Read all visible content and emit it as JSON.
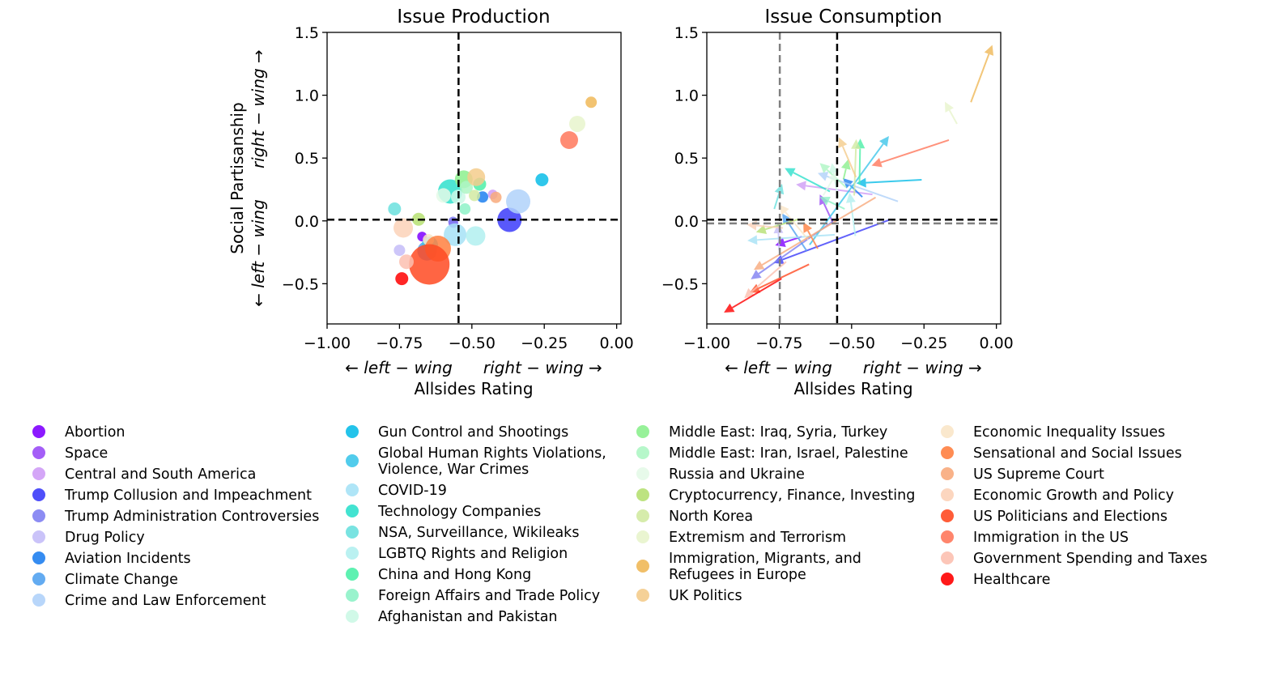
{
  "chart_data": [
    {
      "type": "scatter",
      "title": "Issue Production",
      "xlabel": "Allsides Rating",
      "xlabel_sub": "← left − wing      right − wing →",
      "ylabel": "Social Partisanship",
      "ylabel_sub": "← left − wing      right − wing →",
      "xlim": [
        -1.0,
        0.015
      ],
      "ylim": [
        -0.82,
        1.5
      ],
      "xticks": [
        "−1.00",
        "−0.75",
        "−0.50",
        "−0.25",
        "0.00"
      ],
      "xtick_values": [
        -1.0,
        -0.75,
        -0.5,
        -0.25,
        0.0
      ],
      "yticks": [
        "−0.5",
        "0.0",
        "0.5",
        "1.0",
        "1.5"
      ],
      "ytick_values": [
        -0.5,
        0.0,
        0.5,
        1.0,
        1.5
      ],
      "reference_lines": {
        "vertical": [
          -0.546
        ],
        "horizontal": [
          0.01
        ],
        "style": "dashed",
        "color": "#000000"
      },
      "grid": false
    },
    {
      "type": "arrows",
      "title": "Issue Consumption",
      "xlabel": "Allsides Rating",
      "xlabel_sub": "← left − wing      right − wing →",
      "xlim": [
        -1.0,
        0.015
      ],
      "ylim": [
        -0.82,
        1.5
      ],
      "xticks": [
        "−1.00",
        "−0.75",
        "−0.50",
        "−0.25",
        "0.00"
      ],
      "xtick_values": [
        -1.0,
        -0.75,
        -0.5,
        -0.25,
        0.0
      ],
      "yticks": [
        "−0.5",
        "0.0",
        "0.5",
        "1.0",
        "1.5"
      ],
      "ytick_values": [
        -0.5,
        0.0,
        0.5,
        1.0,
        1.5
      ],
      "reference_lines": {
        "vertical": [
          -0.55,
          -0.748
        ],
        "horizontal": [
          0.01,
          -0.02
        ],
        "colors": [
          "#000000",
          "#808080"
        ],
        "style": "dashed"
      },
      "grid": false
    }
  ],
  "legend": {
    "placement": "bottom",
    "topics": [
      {
        "name": "Abortion",
        "color": "#7f00ff",
        "production": [
          -0.672,
          -0.125
        ],
        "weight": 6,
        "consumption": [
          -0.764,
          -0.195
        ]
      },
      {
        "name": "Space",
        "color": "#9a4cf6",
        "production": [
          -0.564,
          -0.017
        ],
        "weight": 6,
        "consumption": [
          -0.61,
          0.21
        ]
      },
      {
        "name": "Central and South America",
        "color": "#cf9cf6",
        "production": [
          -0.428,
          0.21
        ],
        "weight": 6,
        "consumption": [
          -0.692,
          0.29
        ]
      },
      {
        "name": "Trump Collusion and Impeachment",
        "color": "#3c3cfa",
        "production": [
          -0.37,
          0.008
        ],
        "weight": 15,
        "consumption": [
          -0.77,
          -0.335
        ]
      },
      {
        "name": "Trump Administration Controversies",
        "color": "#7f7ff2",
        "production": [
          -0.565,
          -0.005
        ],
        "weight": 6,
        "consumption": [
          -0.848,
          -0.465
        ]
      },
      {
        "name": "Drug Policy",
        "color": "#c4bcf8",
        "production": [
          -0.75,
          -0.234
        ],
        "weight": 7,
        "consumption": [
          -0.754,
          -0.02
        ]
      },
      {
        "name": "Aviation Incidents",
        "color": "#1f80f0",
        "production": [
          -0.463,
          0.19
        ],
        "weight": 7,
        "consumption": [
          -0.53,
          0.34
        ]
      },
      {
        "name": "Climate Change",
        "color": "#52a2f0",
        "production": [
          -0.655,
          -0.239
        ],
        "weight": 12,
        "consumption": [
          -0.74,
          0.06
        ]
      },
      {
        "name": "Crime and Law Enforcement",
        "color": "#b0d2fa",
        "production": [
          -0.34,
          0.155
        ],
        "weight": 15,
        "consumption": [
          -0.617,
          0.38
        ]
      },
      {
        "name": "Gun Control and Shootings",
        "color": "#0bbde8",
        "production": [
          -0.258,
          0.327
        ],
        "weight": 8,
        "consumption": [
          -0.484,
          0.3
        ]
      },
      {
        "name": "Global Human Rights Violations,\nViolence, War Crimes",
        "color": "#3ec6ea",
        "production": [
          -0.645,
          -0.19
        ],
        "weight": 10,
        "consumption": [
          -0.371,
          0.675
        ]
      },
      {
        "name": "COVID-19",
        "color": "#a6e2f6",
        "production": [
          -0.558,
          -0.11
        ],
        "weight": 14,
        "consumption": [
          -0.86,
          -0.157
        ]
      },
      {
        "name": "Technology Companies",
        "color": "#2fe0cc",
        "production": [
          -0.575,
          0.234
        ],
        "weight": 15,
        "consumption": [
          -0.731,
          0.42
        ]
      },
      {
        "name": "NSA, Surveillance, Wikileaks",
        "color": "#6ae0de",
        "production": [
          -0.767,
          0.095
        ],
        "weight": 8,
        "consumption": [
          -0.74,
          0.295
        ]
      },
      {
        "name": "LGBTQ Rights and Religion",
        "color": "#b2f0f0",
        "production": [
          -0.487,
          -0.12
        ],
        "weight": 12,
        "consumption": [
          -0.507,
          0.224
        ]
      },
      {
        "name": "China and Hong Kong",
        "color": "#4cf0a8",
        "production": [
          -0.473,
          0.292
        ],
        "weight": 8,
        "consumption": [
          -0.47,
          0.655
        ]
      },
      {
        "name": "Foreign Affairs and Trade Policy",
        "color": "#8ef2c8",
        "production": [
          -0.524,
          0.095
        ],
        "weight": 7,
        "consumption": [
          -0.61,
          0.19
        ]
      },
      {
        "name": "Afghanistan and Pakistan",
        "color": "#ccf8e6",
        "production": [
          -0.547,
          0.19
        ],
        "weight": 9,
        "consumption": [
          -0.568,
          0.46
        ]
      },
      {
        "name": "Middle East: Iraq, Syria, Turkey",
        "color": "#8cf08e",
        "production": [
          -0.528,
          0.331
        ],
        "weight": 11,
        "consumption": [
          -0.512,
          0.49
        ]
      },
      {
        "name": "Middle East: Iran, Israel, Palestine",
        "color": "#aef6c4",
        "production": [
          -0.519,
          0.267
        ],
        "weight": 8,
        "consumption": [
          -0.61,
          0.46
        ]
      },
      {
        "name": "Russia and Ukraine",
        "color": "#e4fae8",
        "production": [
          -0.598,
          0.202
        ],
        "weight": 9,
        "consumption": [
          -0.55,
          0.39
        ]
      },
      {
        "name": "Cryptocurrency, Finance, Investing",
        "color": "#b6e072",
        "production": [
          -0.684,
          0.013
        ],
        "weight": 8,
        "consumption": [
          -0.83,
          -0.09
        ]
      },
      {
        "name": "North Korea",
        "color": "#d2eaa2",
        "production": [
          -0.491,
          0.202
        ],
        "weight": 7,
        "consumption": [
          -0.484,
          0.65
        ]
      },
      {
        "name": "Extremism and Terrorism",
        "color": "#e8f4cc",
        "production": [
          -0.136,
          0.772
        ],
        "weight": 10,
        "consumption": [
          -0.178,
          0.948
        ]
      },
      {
        "name": "Immigration, Migrants, and\nRefugees in Europe",
        "color": "#f0b858",
        "production": [
          -0.088,
          0.944
        ],
        "weight": 7,
        "consumption": [
          -0.014,
          1.4
        ]
      },
      {
        "name": "UK Politics",
        "color": "#f4cc8c",
        "production": [
          -0.485,
          0.348
        ],
        "weight": 11,
        "consumption": [
          -0.544,
          0.665
        ]
      },
      {
        "name": "Economic Inequality Issues",
        "color": "#fae6c8",
        "production": [
          -0.65,
          -0.15
        ],
        "weight": 7,
        "consumption": [
          -0.75,
          0.13
        ]
      },
      {
        "name": "Sensational and Social Issues",
        "color": "#ff8040",
        "production": [
          -0.617,
          -0.221
        ],
        "weight": 16,
        "consumption": [
          -0.667,
          -0.01
        ]
      },
      {
        "name": "US Supreme Court",
        "color": "#f8aa7c",
        "production": [
          -0.417,
          0.187
        ],
        "weight": 7,
        "consumption": [
          -0.838,
          -0.39
        ]
      },
      {
        "name": "Economic Growth and Policy",
        "color": "#fcd2b8",
        "production": [
          -0.737,
          -0.056
        ],
        "weight": 12,
        "consumption": [
          -0.862,
          -0.03
        ]
      },
      {
        "name": "US Politicians and Elections",
        "color": "#ff4a22",
        "production": [
          -0.647,
          -0.346
        ],
        "weight": 25,
        "consumption": [
          -0.852,
          -0.57
        ]
      },
      {
        "name": "Immigration in the US",
        "color": "#ff785c",
        "production": [
          -0.164,
          0.643
        ],
        "weight": 11,
        "consumption": [
          -0.431,
          0.44
        ]
      },
      {
        "name": "Government Spending and Taxes",
        "color": "#fcc0b0",
        "production": [
          -0.726,
          -0.325
        ],
        "weight": 9,
        "consumption": [
          -0.871,
          -0.615
        ]
      },
      {
        "name": "Healthcare",
        "color": "#ff0000",
        "production": [
          -0.742,
          -0.46
        ],
        "weight": 8,
        "consumption": [
          -0.941,
          -0.73
        ]
      }
    ]
  }
}
